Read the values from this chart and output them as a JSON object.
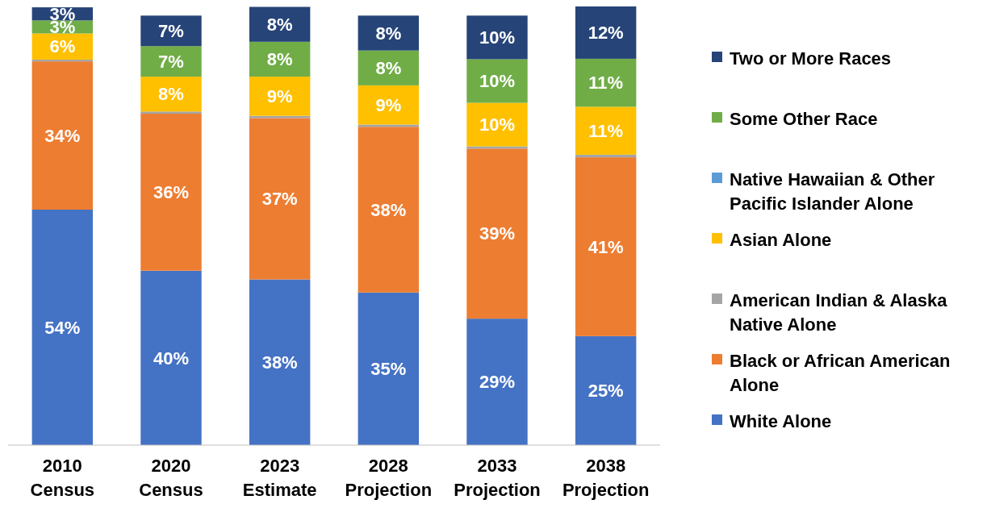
{
  "chart_data": {
    "type": "bar",
    "stacked": true,
    "legend": "right",
    "categories": [
      "2010 Census",
      "2020 Census",
      "2023 Estimate",
      "2028 Projection",
      "2033 Projection",
      "2038 Projection"
    ],
    "series": [
      {
        "name": "White Alone",
        "color": "#4472c4",
        "values": [
          54,
          40,
          38,
          35,
          29,
          25
        ],
        "value_labels": [
          "54%",
          "40%",
          "38%",
          "35%",
          "29%",
          "25%"
        ]
      },
      {
        "name": "Black or African American Alone",
        "color": "#ed7d31",
        "values": [
          34,
          36,
          37,
          38,
          39,
          41
        ],
        "value_labels": [
          "34%",
          "36%",
          "37%",
          "38%",
          "39%",
          "41%"
        ]
      },
      {
        "name": "American Indian & Alaska Native Alone",
        "color": "#a5a5a5",
        "values": [
          0.4,
          0.5,
          0.5,
          0.5,
          0.5,
          0.6
        ],
        "value_labels": [
          null,
          null,
          null,
          null,
          null,
          null
        ]
      },
      {
        "name": "Asian Alone",
        "color": "#ffc000",
        "values": [
          6,
          8,
          9,
          9,
          10,
          11
        ],
        "value_labels": [
          "6%",
          "8%",
          "9%",
          "9%",
          "10%",
          "11%"
        ]
      },
      {
        "name": "Native Hawaiian & Other Pacific Islander Alone",
        "color": "#5b9bd5",
        "values": [
          null,
          null,
          null,
          null,
          null,
          null
        ],
        "value_labels": [
          null,
          null,
          null,
          null,
          null,
          null
        ]
      },
      {
        "name": "Some Other Race",
        "color": "#70ad47",
        "values": [
          3,
          7,
          8,
          8,
          10,
          11
        ],
        "value_labels": [
          "3%",
          "7%",
          "8%",
          "8%",
          "10%",
          "11%"
        ]
      },
      {
        "name": "Two or More Races",
        "color": "#264478",
        "values": [
          3,
          7,
          8,
          8,
          10,
          12
        ],
        "value_labels": [
          "3%",
          "7%",
          "8%",
          "8%",
          "10%",
          "12%"
        ]
      }
    ]
  }
}
